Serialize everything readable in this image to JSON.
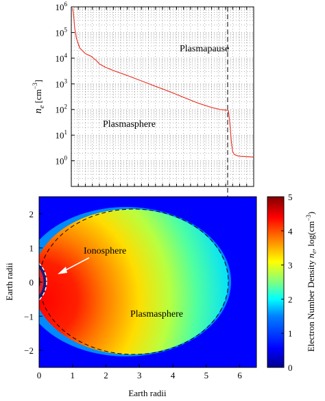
{
  "chart_data": [
    {
      "type": "line",
      "ylabel_base": "n",
      "ylabel_sub": "e",
      "ylabel_unit": " [cm",
      "ylabel_unit_exp": "−3",
      "ylabel_unit_close": "]",
      "yscale": "log",
      "ylim": [
        0.1,
        1000000
      ],
      "xlim": [
        0,
        6.5
      ],
      "y_ticks": [
        {
          "base": "10",
          "exp": "0",
          "value": 1
        },
        {
          "base": "10",
          "exp": "1",
          "value": 10
        },
        {
          "base": "10",
          "exp": "2",
          "value": 100
        },
        {
          "base": "10",
          "exp": "3",
          "value": 1000
        },
        {
          "base": "10",
          "exp": "4",
          "value": 10000
        },
        {
          "base": "10",
          "exp": "5",
          "value": 100000
        },
        {
          "base": "10",
          "exp": "6",
          "value": 1000000
        }
      ],
      "grid": true,
      "series": [
        {
          "color": "#e8382a",
          "x": [
            0.05,
            0.08,
            0.12,
            0.18,
            0.3,
            0.5,
            0.7,
            0.9,
            1.0,
            1.1,
            1.2,
            1.5,
            2.0,
            2.5,
            3.0,
            3.5,
            4.0,
            4.5,
            5.0,
            5.3,
            5.5,
            5.6,
            5.65,
            5.7,
            5.75,
            5.8,
            5.9,
            6.0,
            6.5
          ],
          "y": [
            900000,
            500000,
            150000,
            60000,
            25000,
            15000,
            12000,
            8000,
            6000,
            5200,
            4500,
            3300,
            2100,
            1300,
            800,
            500,
            300,
            180,
            120,
            100,
            95,
            90,
            30,
            6,
            2.3,
            1.8,
            1.6,
            1.5,
            1.4
          ]
        }
      ],
      "annotations": [
        {
          "text": "Plasmapause",
          "x": 5.5,
          "y": 30000
        },
        {
          "text": "Plasmasphere",
          "x": 1.2,
          "y": 60
        }
      ],
      "plasmapause_x": 5.65
    },
    {
      "type": "heatmap",
      "xlabel": "Earth radii",
      "ylabel": "Earth radii",
      "xlim": [
        0,
        6.5
      ],
      "ylim": [
        -2.5,
        2.5
      ],
      "x_ticks": [
        "0",
        "1",
        "2",
        "3",
        "4",
        "5",
        "6"
      ],
      "y_ticks": [
        "2",
        "1",
        "0",
        "−1",
        "−2"
      ],
      "colorbar": {
        "label_base": "Electron Number Density ",
        "label_n": "n",
        "label_sub": "e",
        "label_log": ", log(cm",
        "label_exp": "−3",
        "label_close": ")",
        "range": [
          0,
          5
        ],
        "ticks": [
          "0",
          "1",
          "2",
          "3",
          "4",
          "5"
        ],
        "colors": [
          "#00008f",
          "#0000ff",
          "#0080ff",
          "#00ffff",
          "#80ff80",
          "#ffff00",
          "#ff8000",
          "#ff0000",
          "#800000"
        ]
      },
      "annotations": [
        {
          "text": "Ionosphere"
        },
        {
          "text": "Plasmasphere"
        }
      ],
      "plasmapause_boundary": {
        "x_center": 3.15,
        "x_radius": 2.5,
        "y_radius": 2.2
      }
    }
  ]
}
